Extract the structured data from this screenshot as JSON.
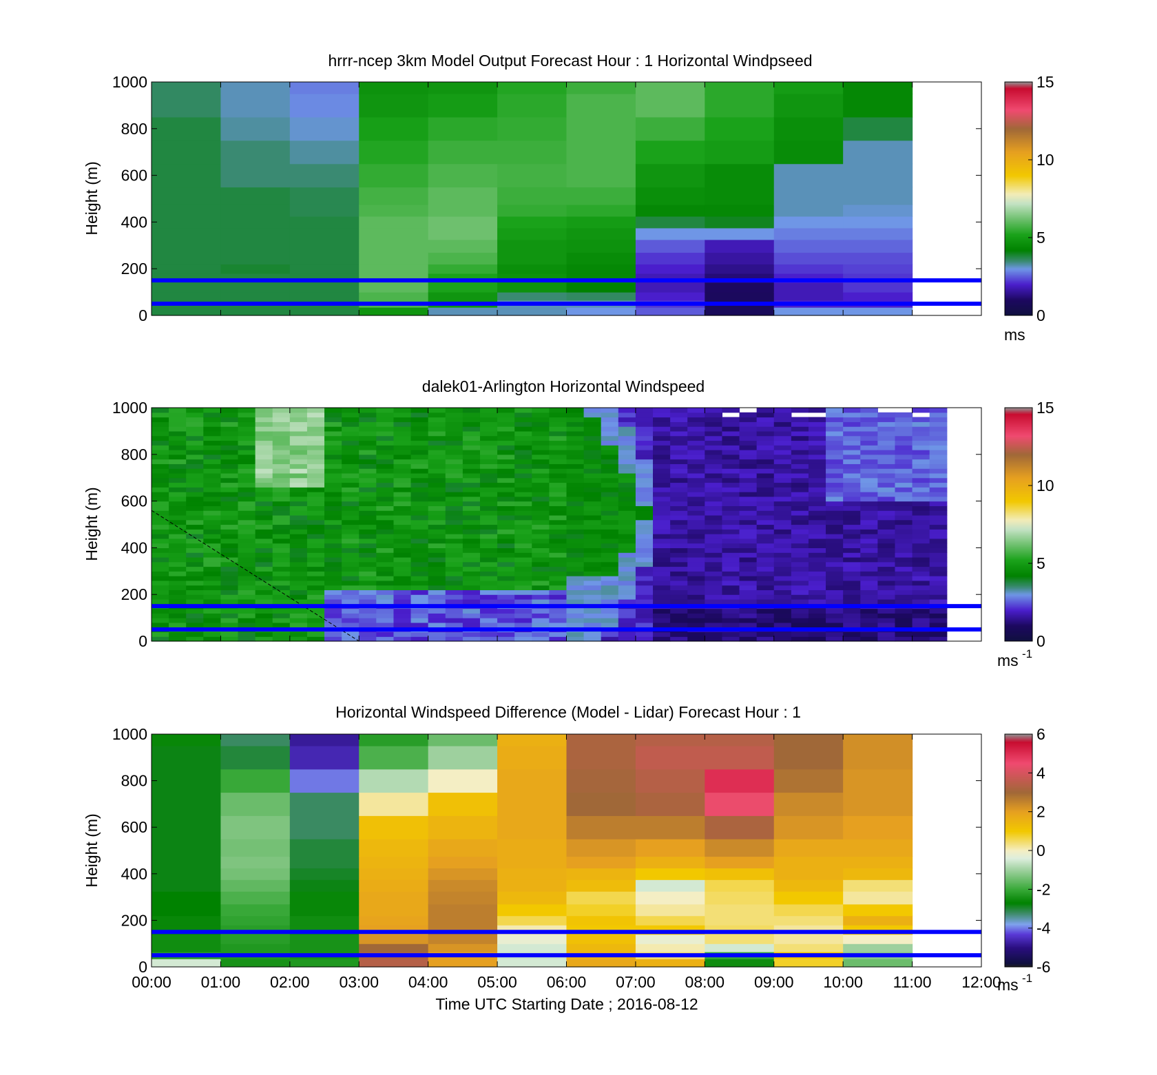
{
  "chart_data": [
    {
      "type": "heatmap",
      "title": "hrrr-ncep 3km Model Output   Forecast Hour : 1 Horizontal Windpseed",
      "ylabel": "Height (m)",
      "xlabel": "",
      "xlim": [
        "00:00",
        "12:00"
      ],
      "ylim": [
        0,
        1000
      ],
      "yticks": [
        "0",
        "200",
        "400",
        "600",
        "800",
        "1000"
      ],
      "colorbar": {
        "ticks": [
          "0",
          "5",
          "10",
          "15"
        ],
        "range": [
          0,
          15
        ],
        "unit": "ms"
      },
      "reference_lines_m": [
        50,
        150
      ],
      "x_columns": [
        "00:00",
        "01:00",
        "02:00",
        "03:00",
        "04:00",
        "05:00",
        "06:00",
        "07:00",
        "08:00",
        "09:00",
        "10:00"
      ],
      "y_levels_m": [
        20,
        50,
        80,
        120,
        160,
        200,
        240,
        300,
        350,
        400,
        450,
        500,
        600,
        700,
        800,
        900,
        1000
      ],
      "values": [
        [
          3.8,
          3.8,
          3.8,
          3.8,
          3.8,
          3.8,
          3.8,
          3.8,
          3.8,
          3.8,
          3.8,
          3.8,
          3.8,
          3.8,
          3.8,
          3.6,
          3.6
        ],
        [
          3.8,
          3.8,
          3.8,
          3.8,
          3.8,
          3.9,
          3.8,
          3.8,
          3.8,
          3.8,
          3.8,
          3.8,
          3.5,
          3.5,
          3.3,
          3.2,
          3.2
        ],
        [
          3.8,
          3.8,
          3.8,
          3.8,
          3.8,
          3.8,
          3.8,
          3.8,
          3.8,
          3.8,
          3.7,
          3.7,
          3.5,
          3.3,
          3.1,
          2.9,
          2.8
        ],
        [
          4.8,
          5.8,
          5.8,
          6.0,
          6.0,
          6.0,
          6.0,
          6.0,
          6.0,
          6.0,
          5.8,
          5.7,
          5.5,
          5.3,
          5.1,
          4.8,
          4.7
        ],
        [
          3.2,
          4.8,
          4.8,
          5.2,
          5.2,
          5.5,
          5.8,
          6.0,
          6.2,
          6.2,
          6.0,
          6.0,
          5.8,
          5.6,
          5.4,
          5.0,
          4.8
        ],
        [
          3.2,
          3.2,
          3.5,
          4.7,
          4.7,
          4.6,
          4.8,
          4.8,
          5.0,
          5.2,
          5.5,
          5.6,
          5.7,
          5.6,
          5.5,
          5.4,
          5.3
        ],
        [
          3.0,
          3.2,
          3.6,
          4.2,
          4.4,
          4.4,
          4.5,
          4.7,
          4.8,
          5.0,
          5.4,
          5.6,
          5.8,
          5.8,
          5.8,
          5.8,
          5.6
        ],
        [
          2.5,
          2.2,
          2.0,
          1.8,
          1.8,
          2.0,
          2.2,
          2.5,
          3.0,
          3.8,
          4.4,
          4.6,
          4.8,
          5.2,
          5.6,
          6.0,
          6.0
        ],
        [
          0.8,
          0.8,
          0.9,
          1.0,
          1.2,
          1.4,
          1.6,
          1.8,
          3.0,
          4.0,
          4.4,
          4.5,
          4.5,
          5.0,
          5.2,
          5.4,
          5.4
        ],
        [
          3.0,
          2.0,
          1.8,
          1.8,
          2.0,
          2.2,
          2.4,
          2.6,
          2.8,
          3.0,
          3.2,
          3.2,
          3.2,
          4.5,
          4.6,
          4.8,
          5.0
        ],
        [
          3.0,
          2.0,
          2.0,
          2.2,
          2.2,
          2.3,
          2.4,
          2.6,
          2.8,
          3.0,
          3.1,
          3.2,
          3.2,
          3.2,
          3.8,
          4.4,
          4.4
        ]
      ]
    },
    {
      "type": "heatmap",
      "title": "dalek01-Arlington  Horizontal Windspeed",
      "ylabel": "Height (m)",
      "xlabel": "",
      "xlim": [
        "00:00",
        "12:00"
      ],
      "ylim": [
        0,
        1000
      ],
      "yticks": [
        "0",
        "200",
        "400",
        "600",
        "800",
        "1000"
      ],
      "colorbar": {
        "ticks": [
          "0",
          "5",
          "10",
          "15"
        ],
        "range": [
          0,
          15
        ],
        "unit": "ms",
        "unit_exp": "-1"
      },
      "reference_lines_m": [
        50,
        150
      ],
      "time_range_hours": [
        0,
        11.5
      ],
      "time_samples": 46,
      "height_samples": 50
    },
    {
      "type": "heatmap",
      "title": "Horizontal Windspeed Difference (Model - Lidar) Forecast Hour : 1",
      "ylabel": "Height (m)",
      "xlabel": "Time UTC  Starting Date ; 2016-08-12",
      "xlim": [
        "00:00",
        "12:00"
      ],
      "xticks": [
        "00:00",
        "01:00",
        "02:00",
        "03:00",
        "04:00",
        "05:00",
        "06:00",
        "07:00",
        "08:00",
        "09:00",
        "10:00",
        "11:00",
        "12:00"
      ],
      "ylim": [
        0,
        1000
      ],
      "yticks": [
        "0",
        "200",
        "400",
        "600",
        "800",
        "1000"
      ],
      "colorbar": {
        "ticks": [
          "-6",
          "-4",
          "-2",
          "0",
          "2",
          "4",
          "6"
        ],
        "range": [
          -6,
          6
        ],
        "unit": "ms",
        "unit_exp": "-1"
      },
      "reference_lines_m": [
        50,
        150
      ],
      "x_columns": [
        "00:00",
        "01:00",
        "02:00",
        "03:00",
        "04:00",
        "05:00",
        "06:00",
        "07:00",
        "08:00",
        "09:00",
        "10:00"
      ],
      "y_levels_m": [
        20,
        50,
        80,
        120,
        160,
        200,
        240,
        300,
        350,
        400,
        450,
        500,
        600,
        700,
        800,
        900,
        1000
      ],
      "values": [
        [
          -0.5,
          -2.2,
          -2.5,
          -2.5,
          -2.6,
          -2.6,
          -2.7,
          -2.7,
          -2.8,
          -2.8,
          -2.8,
          -2.8,
          -2.8,
          -2.8,
          -2.8,
          -2.8,
          -2.6
        ],
        [
          -2.4,
          -2.3,
          -2.3,
          -2.2,
          -2.2,
          -2.1,
          -2.0,
          -1.8,
          -1.6,
          -1.4,
          -1.3,
          -1.4,
          -1.3,
          -1.5,
          -2.0,
          -3.0,
          -3.2
        ],
        [
          -2.3,
          -2.4,
          -2.4,
          -2.4,
          -2.5,
          -2.5,
          -2.6,
          -2.6,
          -2.8,
          -2.9,
          -3.0,
          -3.0,
          -3.2,
          -3.2,
          -4.0,
          -4.6,
          -4.8
        ],
        [
          3.4,
          3.2,
          3.0,
          2.2,
          2.0,
          1.9,
          1.8,
          1.8,
          1.7,
          1.6,
          1.5,
          1.4,
          1.2,
          0.2,
          -0.8,
          -1.8,
          -2.2
        ],
        [
          2.0,
          2.0,
          2.2,
          2.5,
          2.6,
          2.6,
          2.6,
          2.5,
          2.4,
          2.2,
          2.0,
          1.8,
          1.5,
          1.2,
          0.0,
          -1.0,
          -1.5
        ],
        [
          -0.5,
          -0.6,
          -0.5,
          -0.2,
          0.1,
          0.6,
          1.0,
          1.4,
          1.6,
          1.6,
          1.7,
          1.7,
          1.8,
          1.8,
          1.8,
          1.7,
          1.6
        ],
        [
          1.8,
          1.6,
          1.4,
          1.2,
          1.0,
          1.1,
          0.8,
          0.6,
          1.3,
          1.5,
          2.0,
          2.2,
          2.6,
          3.0,
          3.1,
          3.2,
          3.2
        ],
        [
          1.6,
          0.4,
          0.1,
          -0.2,
          1.0,
          0.6,
          0.2,
          0.0,
          -0.5,
          1.0,
          1.6,
          2.0,
          2.6,
          3.2,
          3.4,
          3.6,
          3.4
        ],
        [
          -2.5,
          -2.0,
          -0.5,
          0.4,
          0.5,
          0.4,
          0.4,
          0.5,
          0.6,
          1.2,
          2.0,
          2.4,
          3.2,
          4.4,
          5.0,
          3.6,
          3.4
        ],
        [
          0.8,
          1.0,
          0.4,
          0.2,
          0.2,
          0.4,
          0.6,
          1.0,
          1.4,
          1.6,
          1.6,
          1.8,
          2.2,
          2.4,
          2.8,
          3.0,
          3.0
        ],
        [
          -1.5,
          -1.2,
          -1.0,
          0.0,
          1.0,
          1.6,
          1.0,
          0.2,
          0.4,
          1.4,
          1.6,
          1.8,
          2.0,
          2.2,
          2.2,
          2.3,
          2.3
        ]
      ]
    }
  ],
  "colors": {
    "reference_line": "#0000ff",
    "speed_colormap": [
      [
        0.0,
        "#202020"
      ],
      [
        0.05,
        "#101040"
      ],
      [
        1.0,
        "#1c0860"
      ],
      [
        2.0,
        "#4a1ecc"
      ],
      [
        3.0,
        "#6f96e6"
      ],
      [
        3.5,
        "#3a8a72"
      ],
      [
        4.2,
        "#008200"
      ],
      [
        5.2,
        "#1aa21a"
      ],
      [
        6.2,
        "#6ec06e"
      ],
      [
        7.2,
        "#c4e2c4"
      ],
      [
        7.8,
        "#f2ecb8"
      ],
      [
        9.0,
        "#f2c800"
      ],
      [
        10.5,
        "#e6a020"
      ],
      [
        12.0,
        "#a06838"
      ],
      [
        13.2,
        "#f04a70"
      ],
      [
        14.6,
        "#c80c30"
      ],
      [
        15.0,
        "#909090"
      ]
    ],
    "diff_colormap": [
      [
        -6.0,
        "#202020"
      ],
      [
        -5.8,
        "#101040"
      ],
      [
        -5.0,
        "#2a0e80"
      ],
      [
        -4.3,
        "#5a3ad8"
      ],
      [
        -3.8,
        "#7fa2ee"
      ],
      [
        -3.2,
        "#3a8a62"
      ],
      [
        -2.7,
        "#008200"
      ],
      [
        -2.0,
        "#38a838"
      ],
      [
        -1.0,
        "#9ed09e"
      ],
      [
        -0.4,
        "#ddeedd"
      ],
      [
        0.0,
        "#f4eec4"
      ],
      [
        1.0,
        "#f2c800"
      ],
      [
        2.0,
        "#e6a020"
      ],
      [
        3.0,
        "#a06838"
      ],
      [
        4.5,
        "#f04a70"
      ],
      [
        5.6,
        "#c80c30"
      ],
      [
        6.0,
        "#909090"
      ]
    ]
  }
}
